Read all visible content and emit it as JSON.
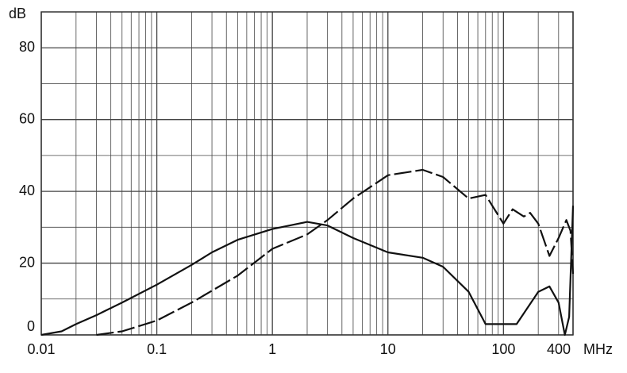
{
  "chart_data": {
    "type": "line",
    "x_label": "MHz",
    "y_label": "dB",
    "log_x": true,
    "grid": true,
    "xlim": [
      0.01,
      400
    ],
    "ylim": [
      0,
      90
    ],
    "xticks": [
      0.01,
      0.1,
      1,
      10,
      100,
      400
    ],
    "yticks": [
      0,
      20,
      40,
      60,
      80
    ],
    "series": [
      {
        "color": "#111111",
        "dashed": false,
        "x": [
          0.01,
          0.015,
          0.02,
          0.03,
          0.05,
          0.1,
          0.2,
          0.3,
          0.5,
          1,
          2,
          3,
          5,
          10,
          20,
          30,
          50,
          70,
          100,
          130,
          200,
          250,
          300,
          340,
          370,
          400
        ],
        "values": [
          0,
          1,
          3,
          5.5,
          9,
          14,
          19.5,
          23,
          26.5,
          29.5,
          31.5,
          30.5,
          27,
          23,
          21.5,
          19,
          12,
          3,
          3,
          3,
          12,
          13.5,
          9,
          0,
          5,
          36
        ]
      },
      {
        "color": "#111111",
        "dashed": true,
        "x": [
          0.03,
          0.05,
          0.1,
          0.2,
          0.5,
          1,
          2,
          3,
          5,
          10,
          20,
          30,
          50,
          70,
          100,
          120,
          150,
          170,
          200,
          250,
          300,
          350,
          380,
          400
        ],
        "values": [
          0,
          1,
          4,
          9,
          16.5,
          24,
          28,
          32,
          38,
          44.5,
          46,
          44,
          38,
          39,
          31,
          35,
          33,
          34,
          31,
          22,
          27,
          32,
          29,
          17
        ]
      }
    ]
  }
}
